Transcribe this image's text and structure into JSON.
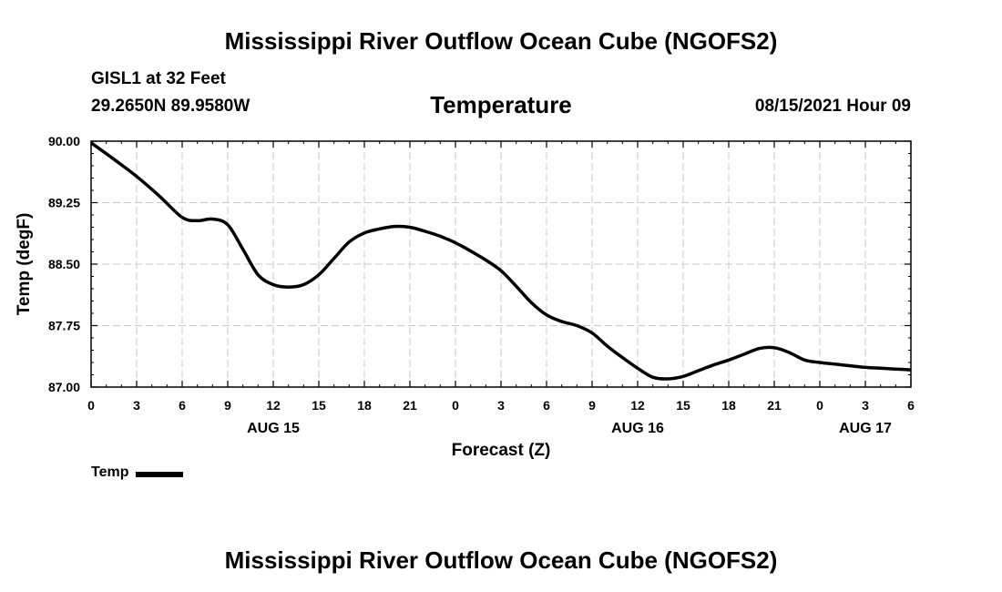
{
  "header": {
    "title": "Mississippi River Outflow Ocean Cube (NGOFS2)",
    "station": "GISL1 at 32 Feet",
    "coords": "29.2650N  89.9580W",
    "chart_title": "Temperature",
    "forecast_time": "08/15/2021 Hour 09"
  },
  "footer": {
    "title": "Mississippi River Outflow Ocean Cube (NGOFS2)"
  },
  "legend": {
    "label": "Temp"
  },
  "chart_data": {
    "type": "line",
    "title": "Temperature",
    "xlabel": "Forecast (Z)",
    "ylabel": "Temp (degF)",
    "xlim": [
      0,
      54
    ],
    "ylim": [
      87.0,
      90.0
    ],
    "grid": true,
    "x_ticks": [
      0,
      3,
      6,
      9,
      12,
      15,
      18,
      21,
      24,
      27,
      30,
      33,
      36,
      39,
      42,
      45,
      48,
      51,
      54
    ],
    "x_tick_labels": [
      "0",
      "3",
      "6",
      "9",
      "12",
      "15",
      "18",
      "21",
      "0",
      "3",
      "6",
      "9",
      "12",
      "15",
      "18",
      "21",
      "0",
      "3",
      "6"
    ],
    "y_ticks": [
      87.0,
      87.75,
      88.5,
      89.25,
      90.0
    ],
    "y_tick_labels": [
      "87.00",
      "87.75",
      "88.50",
      "89.25",
      "90.00"
    ],
    "date_labels": [
      {
        "x": 12,
        "label": "AUG 15"
      },
      {
        "x": 36,
        "label": "AUG 16"
      },
      {
        "x": 51,
        "label": "AUG 17"
      }
    ],
    "series": [
      {
        "name": "Temp",
        "color": "#000000",
        "x": [
          0,
          1.5,
          3,
          4.5,
          6,
          7,
          8,
          9,
          10,
          11,
          12,
          13,
          14,
          15,
          16,
          17,
          18,
          19,
          20,
          21,
          22,
          23,
          24,
          25,
          26,
          27,
          28,
          29,
          30,
          31,
          32,
          33,
          34,
          35,
          36,
          37,
          38,
          39,
          40,
          41,
          42,
          43,
          44,
          45,
          46,
          47,
          48,
          49,
          50,
          51,
          52,
          53,
          54
        ],
        "values": [
          89.98,
          89.78,
          89.57,
          89.33,
          89.07,
          89.03,
          89.05,
          88.98,
          88.68,
          88.37,
          88.25,
          88.22,
          88.25,
          88.37,
          88.57,
          88.77,
          88.88,
          88.93,
          88.96,
          88.95,
          88.9,
          88.84,
          88.76,
          88.66,
          88.55,
          88.42,
          88.23,
          88.03,
          87.88,
          87.8,
          87.75,
          87.66,
          87.5,
          87.36,
          87.23,
          87.12,
          87.1,
          87.13,
          87.2,
          87.27,
          87.33,
          87.4,
          87.47,
          87.48,
          87.42,
          87.33,
          87.3,
          87.28,
          87.26,
          87.24,
          87.23,
          87.22,
          87.21
        ]
      }
    ]
  }
}
